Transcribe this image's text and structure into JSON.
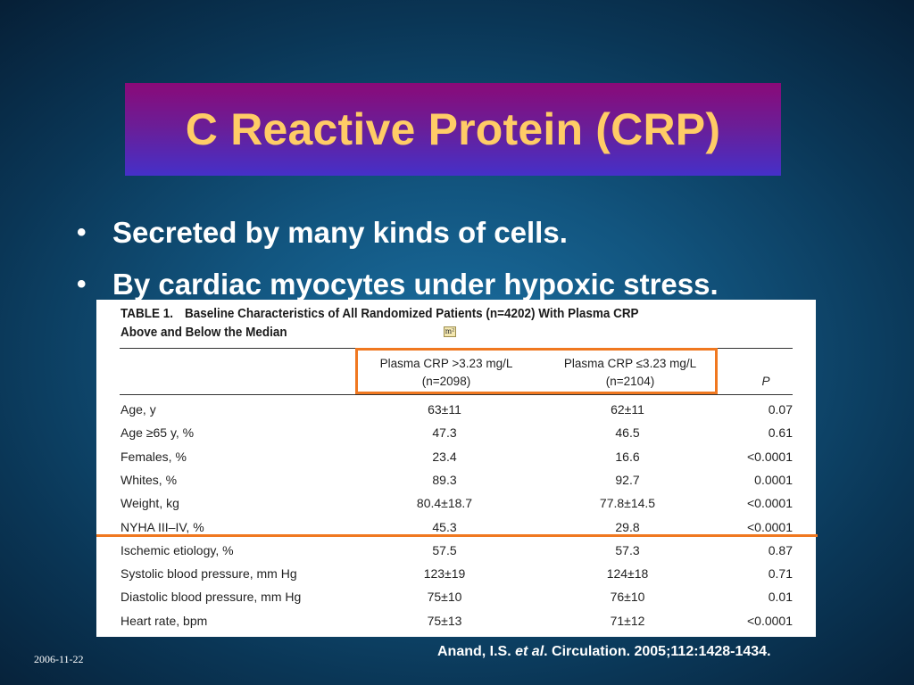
{
  "slide": {
    "title": "C Reactive Protein (CRP)",
    "bullets": [
      "Secreted by many kinds of cells.",
      "By cardiac myocytes under hypoxic stress."
    ],
    "bullet_glyph": "•",
    "citation": {
      "author": "Anand, I.S.",
      "etal": "et al",
      "source": ". Circulation. 2005;112:1428-1434."
    },
    "date": "2006-11-22",
    "colors": {
      "title_text": "#ffcc66",
      "highlight": "#f07820"
    }
  },
  "table": {
    "caption_label": "TABLE 1.",
    "caption_line1": "Baseline Characteristics of All Randomized Patients (n=4202) With Plasma CRP",
    "caption_line2": "Above and Below the Median",
    "badge": "m²",
    "headers": [
      {
        "line1": "Plasma CRP >3.23 mg/L",
        "line2": "(n=2098)"
      },
      {
        "line1": "Plasma CRP ≤3.23 mg/L",
        "line2": "(n=2104)"
      },
      {
        "line1": "P",
        "line2": ""
      }
    ],
    "rows": [
      [
        "Age, y",
        "63±11",
        "62±11",
        "0.07"
      ],
      [
        "Age ≥65 y, %",
        "47.3",
        "46.5",
        "0.61"
      ],
      [
        "Females, %",
        "23.4",
        "16.6",
        "<0.0001"
      ],
      [
        "Whites, %",
        "89.3",
        "92.7",
        "0.0001"
      ],
      [
        "Weight, kg",
        "80.4±18.7",
        "77.8±14.5",
        "<0.0001"
      ],
      [
        "NYHA III–IV, %",
        "45.3",
        "29.8",
        "<0.0001"
      ],
      [
        "Ischemic etiology, %",
        "57.5",
        "57.3",
        "0.87"
      ],
      [
        "Systolic blood pressure, mm Hg",
        "123±19",
        "124±18",
        "0.71"
      ],
      [
        "Diastolic blood pressure, mm Hg",
        "75±10",
        "76±10",
        "0.01"
      ],
      [
        "Heart rate, bpm",
        "75±13",
        "71±12",
        "<0.0001"
      ]
    ]
  }
}
